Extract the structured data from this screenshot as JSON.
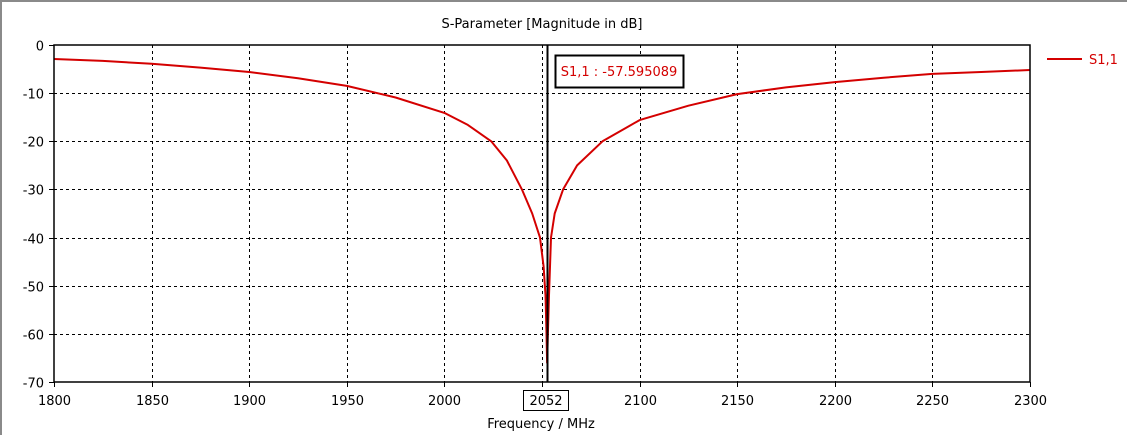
{
  "chart_data": {
    "type": "line",
    "title": "S-Parameter [Magnitude in dB]",
    "xlabel": "Frequency / MHz",
    "ylabel": "",
    "xlim": [
      1800,
      2300
    ],
    "ylim": [
      -70,
      0
    ],
    "xticks": [
      1800,
      1850,
      1900,
      1950,
      2000,
      2050,
      2100,
      2150,
      2200,
      2250,
      2300
    ],
    "xtick_labels": [
      "1800",
      "1850",
      "1900",
      "1950",
      "2000",
      "",
      "2100",
      "2150",
      "2200",
      "2250",
      "2300"
    ],
    "yticks": [
      0,
      -10,
      -20,
      -30,
      -40,
      -50,
      -60,
      -70
    ],
    "ytick_labels": [
      "0",
      "-10",
      "-20",
      "-30",
      "-40",
      "-50",
      "-60",
      "-70"
    ],
    "grid": true,
    "legend": {
      "position": "top-right",
      "entries": [
        "S1,1"
      ]
    },
    "series": [
      {
        "name": "S1,1",
        "color": "#d40000",
        "x": [
          1800,
          1825,
          1850,
          1875,
          1900,
          1925,
          1950,
          1975,
          2000,
          2012,
          2024,
          2032,
          2039.7,
          2045,
          2049,
          2050.8,
          2051.8,
          2052.3,
          2052.6,
          2053,
          2053.6,
          2054.6,
          2056.5,
          2060.8,
          2068,
          2081,
          2100,
          2125,
          2150,
          2175,
          2200,
          2225,
          2250,
          2275,
          2300
        ],
        "y": [
          -2.9,
          -3.3,
          -3.9,
          -4.7,
          -5.6,
          -6.9,
          -8.5,
          -10.9,
          -14.1,
          -16.6,
          -20,
          -24,
          -30,
          -35,
          -40,
          -46,
          -52,
          -60,
          -66,
          -60,
          -52,
          -40,
          -35,
          -30,
          -25,
          -20,
          -15.6,
          -12.6,
          -10.2,
          -8.8,
          -7.7,
          -6.8,
          -6.0,
          -5.6,
          -5.2
        ]
      }
    ],
    "marker": {
      "x": 2052,
      "x_label": "2052",
      "label": "S1,1 : -57.595089",
      "value": -57.595089,
      "color": "#000000"
    }
  }
}
